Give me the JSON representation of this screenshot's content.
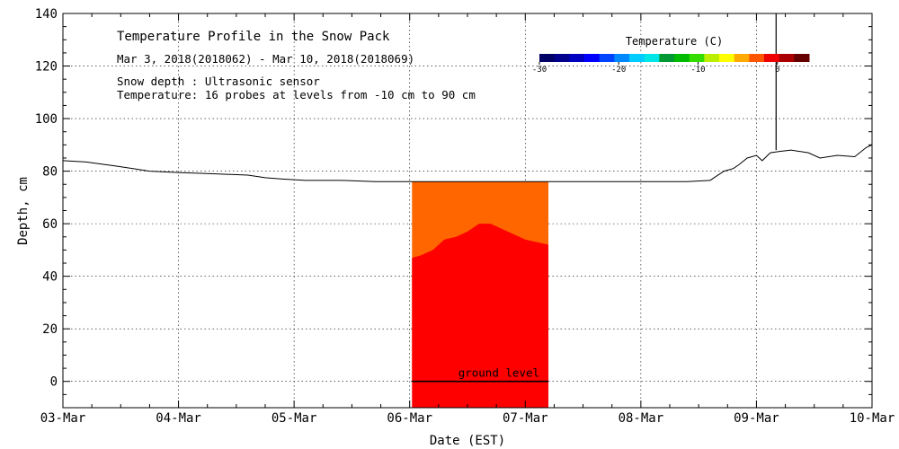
{
  "chart_data": {
    "type": "area",
    "title": "Temperature Profile in the Snow Pack",
    "subtitle": "Mar  3, 2018(2018062) - Mar 10, 2018(2018069)",
    "annotations": [
      "Snow depth : Ultrasonic sensor",
      "Temperature: 16 probes at levels from -10 cm to 90 cm"
    ],
    "xlabel": "Date (EST)",
    "ylabel": "Depth, cm",
    "x_range": [
      "2018-03-03",
      "2018-03-10"
    ],
    "ylim": [
      -10,
      140
    ],
    "x_ticks": [
      {
        "x": 0,
        "label": "03-Mar"
      },
      {
        "x": 1,
        "label": "04-Mar"
      },
      {
        "x": 2,
        "label": "05-Mar"
      },
      {
        "x": 3,
        "label": "06-Mar"
      },
      {
        "x": 4,
        "label": "07-Mar"
      },
      {
        "x": 5,
        "label": "08-Mar"
      },
      {
        "x": 6,
        "label": "09-Mar"
      },
      {
        "x": 7,
        "label": "10-Mar"
      }
    ],
    "y_ticks": [
      0,
      20,
      40,
      60,
      80,
      100,
      120,
      140
    ],
    "grid": true,
    "colorbar": {
      "title": "Temperature (C)",
      "range": [
        -30,
        4
      ],
      "ticks": [
        -30,
        -20,
        -10,
        0
      ],
      "colors": [
        "#000066",
        "#00008c",
        "#0000c0",
        "#0000ff",
        "#0044ff",
        "#0088ff",
        "#00ccff",
        "#00e5e5",
        "#009933",
        "#00bb00",
        "#33dd00",
        "#bbee00",
        "#ffff00",
        "#ffaa00",
        "#ff5500",
        "#ee0000",
        "#aa0000",
        "#660000"
      ]
    },
    "snow_depth": {
      "name": "Snow depth",
      "points": [
        [
          0.0,
          84
        ],
        [
          0.2,
          83.5
        ],
        [
          0.45,
          82
        ],
        [
          0.6,
          81
        ],
        [
          0.75,
          80
        ],
        [
          1.0,
          79.5
        ],
        [
          1.3,
          79
        ],
        [
          1.6,
          78.5
        ],
        [
          1.75,
          77.5
        ],
        [
          1.9,
          77
        ],
        [
          2.1,
          76.5
        ],
        [
          2.4,
          76.5
        ],
        [
          2.7,
          76
        ],
        [
          3.0,
          76
        ],
        [
          3.3,
          76
        ],
        [
          3.6,
          76
        ],
        [
          3.9,
          76
        ],
        [
          4.2,
          76
        ],
        [
          4.5,
          76
        ],
        [
          4.8,
          76
        ],
        [
          5.1,
          76
        ],
        [
          5.4,
          76
        ],
        [
          5.6,
          76.5
        ],
        [
          5.65,
          78
        ],
        [
          5.72,
          80
        ],
        [
          5.8,
          81
        ],
        [
          5.85,
          82.5
        ],
        [
          5.92,
          85
        ],
        [
          6.0,
          86
        ],
        [
          6.05,
          84
        ],
        [
          6.12,
          87
        ],
        [
          6.2,
          87.5
        ],
        [
          6.3,
          88
        ],
        [
          6.45,
          87
        ],
        [
          6.55,
          85
        ],
        [
          6.7,
          86
        ],
        [
          6.85,
          85.5
        ],
        [
          6.95,
          89
        ],
        [
          7.0,
          90
        ]
      ],
      "spike": {
        "x": 6.17,
        "y_min": 88,
        "y_max": 140
      }
    },
    "temperature_profile": {
      "x_start": 3.02,
      "x_end": 4.2,
      "top": 76,
      "warm_color": "#ff0000",
      "upper_color": "#ff6600",
      "warm_layer_top": [
        [
          3.02,
          47
        ],
        [
          3.1,
          48
        ],
        [
          3.2,
          50
        ],
        [
          3.3,
          54
        ],
        [
          3.4,
          55
        ],
        [
          3.5,
          57
        ],
        [
          3.6,
          60
        ],
        [
          3.7,
          60
        ],
        [
          3.8,
          58
        ],
        [
          3.9,
          56
        ],
        [
          4.0,
          54
        ],
        [
          4.1,
          53
        ],
        [
          4.2,
          52
        ]
      ]
    },
    "ground_level": {
      "label": "ground level",
      "y": 0,
      "x_start": 3.02,
      "x_end": 4.2
    }
  }
}
